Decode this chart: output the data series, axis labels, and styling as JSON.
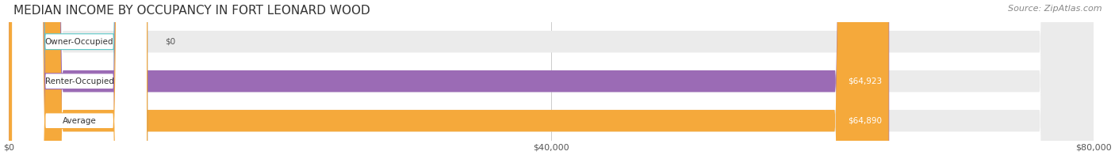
{
  "title": "MEDIAN INCOME BY OCCUPANCY IN FORT LEONARD WOOD",
  "source": "Source: ZipAtlas.com",
  "categories": [
    "Owner-Occupied",
    "Renter-Occupied",
    "Average"
  ],
  "values": [
    0,
    64923,
    64890
  ],
  "bar_colors": [
    "#5dc8c8",
    "#9b6bb5",
    "#f5a93b"
  ],
  "label_colors": [
    "#5dc8c8",
    "#9b6bb5",
    "#f5a93b"
  ],
  "bar_bg_color": "#f0f0f0",
  "value_labels": [
    "$0",
    "$64,923",
    "$64,890"
  ],
  "xlim": [
    0,
    80000
  ],
  "xticks": [
    0,
    40000,
    80000
  ],
  "xtick_labels": [
    "$0",
    "$40,000",
    "$80,000"
  ],
  "title_fontsize": 11,
  "source_fontsize": 8,
  "bar_height": 0.55,
  "background_color": "#ffffff"
}
